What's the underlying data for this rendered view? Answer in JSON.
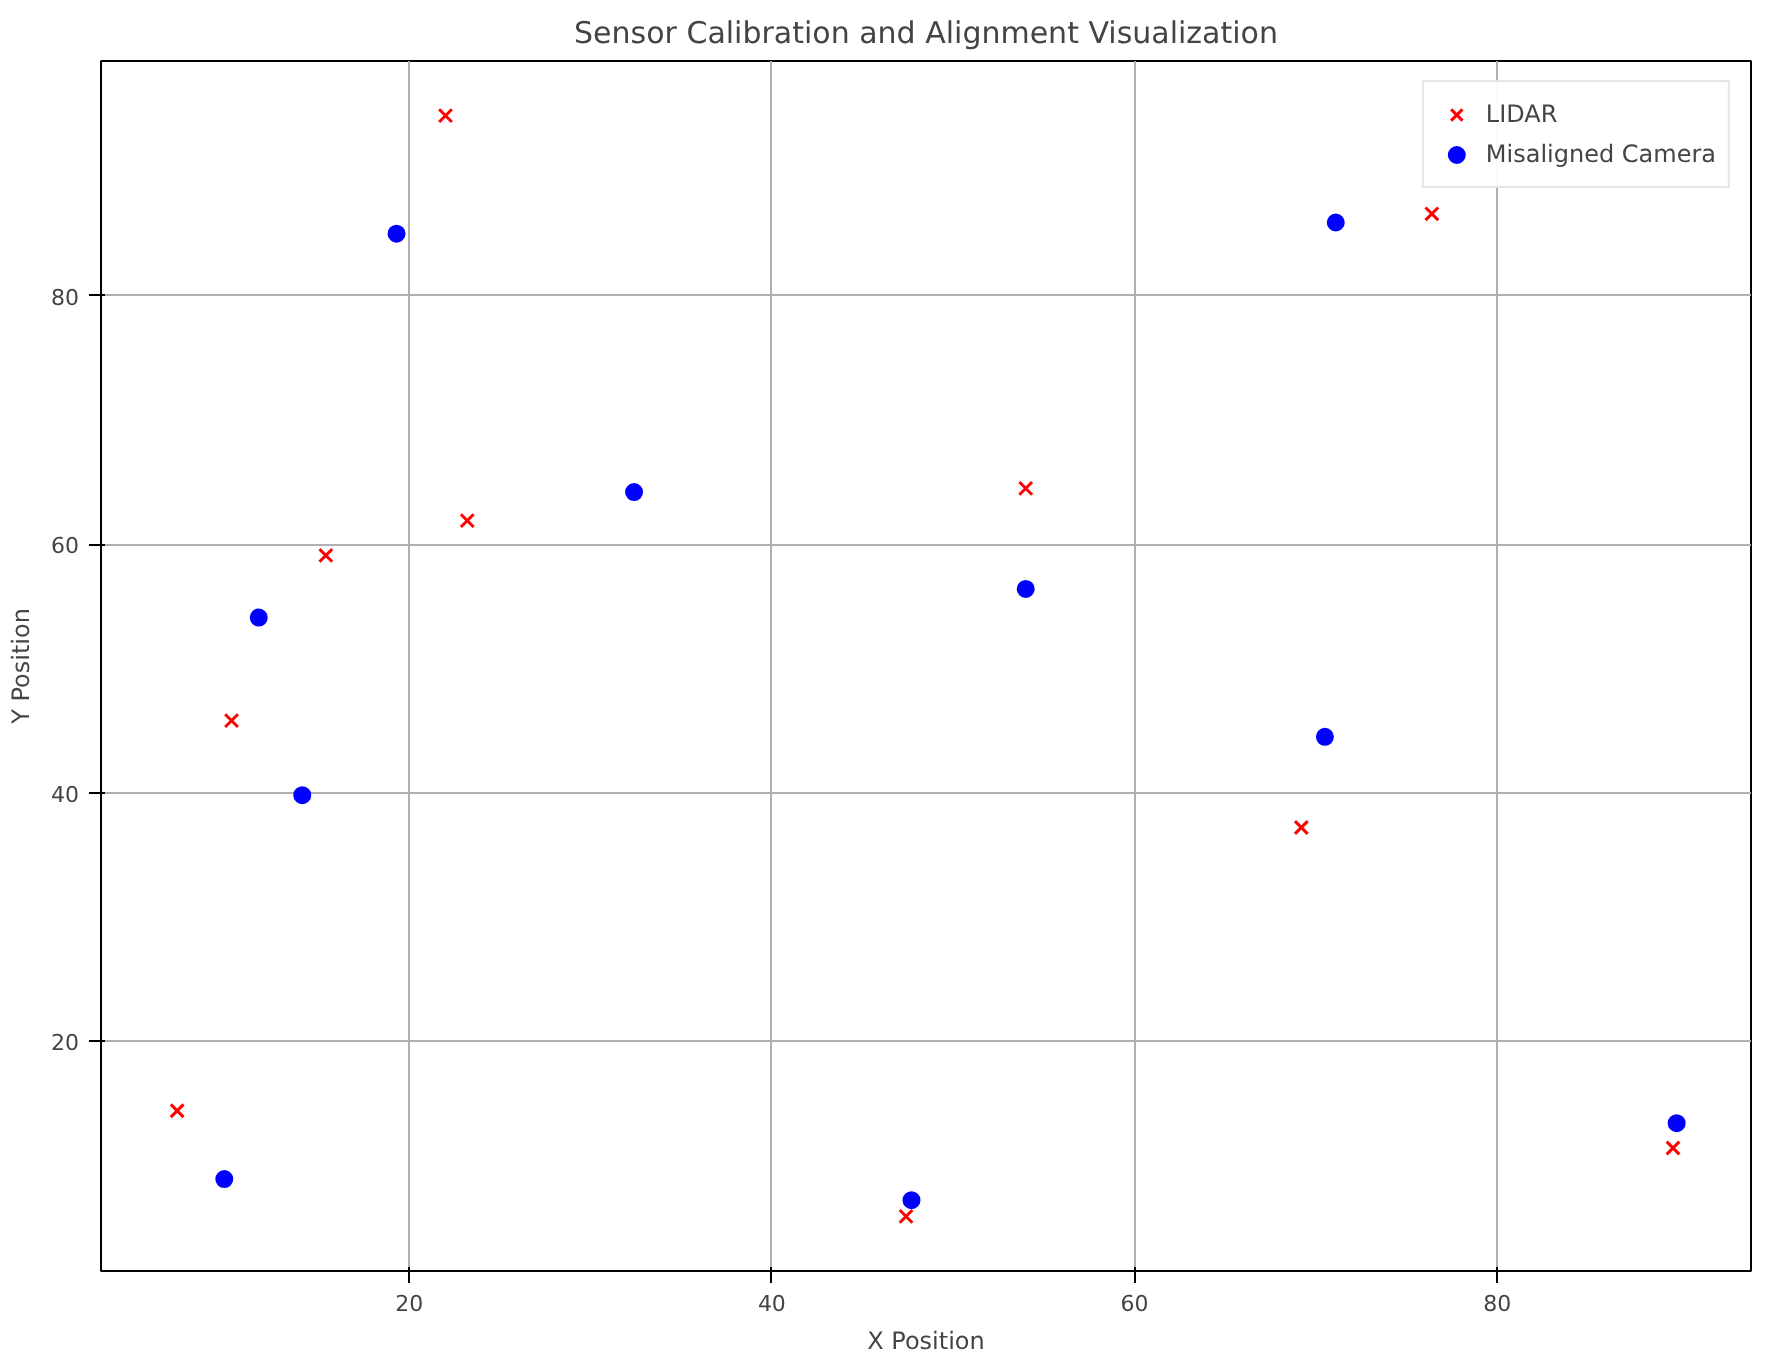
{
  "chart_data": {
    "type": "scatter",
    "title": "Sensor Calibration and Alignment Visualization",
    "xlabel": "X Position",
    "ylabel": "Y Position",
    "xlim": [
      3,
      94
    ],
    "ylim": [
      1.5,
      98.9
    ],
    "xticks": [
      20,
      40,
      60,
      80
    ],
    "yticks": [
      20,
      40,
      60,
      80
    ],
    "grid": true,
    "legend": "top right",
    "series": [
      {
        "name": "LIDAR",
        "color": "#ff0000",
        "marker": "cross",
        "x": [
          7.2,
          10.2,
          15.4,
          22.0,
          23.2,
          47.4,
          54.0,
          69.2,
          76.4,
          89.7
        ],
        "values": [
          14.4,
          45.8,
          59.1,
          94.5,
          61.9,
          5.9,
          64.5,
          37.2,
          86.6,
          11.4
        ]
      },
      {
        "name": "Misaligned Camera",
        "color": "#0000ff",
        "marker": "circle",
        "x": [
          9.8,
          11.7,
          14.1,
          19.3,
          32.4,
          47.7,
          54.0,
          70.5,
          71.1,
          89.9
        ],
        "values": [
          8.9,
          54.1,
          39.8,
          85.0,
          64.2,
          7.2,
          56.4,
          44.5,
          85.9,
          13.4
        ]
      }
    ]
  }
}
